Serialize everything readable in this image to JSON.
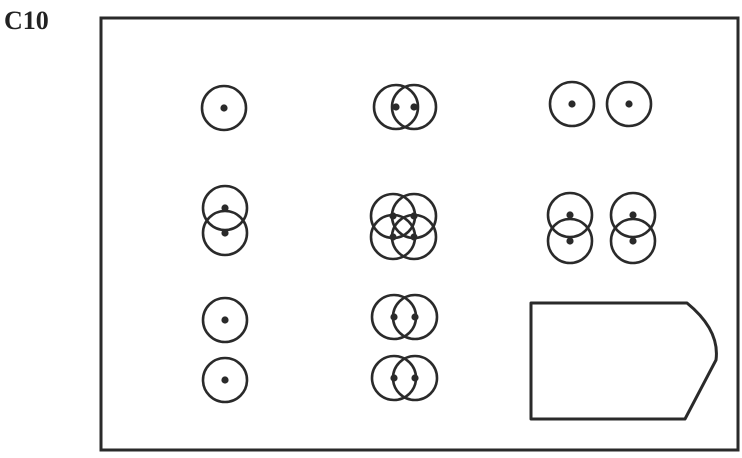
{
  "label": "C10",
  "colors": {
    "ink": "#2a2a2a",
    "background": "#ffffff"
  },
  "figure": {
    "description_kind": "matrix-puzzle",
    "rows": 3,
    "columns": 3,
    "cells": [
      {
        "name": "cell-r1-c1",
        "content": "one-ring"
      },
      {
        "name": "cell-r1-c2",
        "content": "two-rings-overlapping-horizontal"
      },
      {
        "name": "cell-r1-c3",
        "content": "two-rings-side-by-side"
      },
      {
        "name": "cell-r2-c1",
        "content": "two-rings-overlapping-vertical"
      },
      {
        "name": "cell-r2-c2",
        "content": "four-rings-overlapping"
      },
      {
        "name": "cell-r2-c3",
        "content": "two-vertical-pairs-side-by-side"
      },
      {
        "name": "cell-r3-c1",
        "content": "two-rings-stacked"
      },
      {
        "name": "cell-r3-c2",
        "content": "two-horizontal-pairs-stacked"
      },
      {
        "name": "cell-r3-c3",
        "content": "answer-placeholder"
      }
    ]
  }
}
